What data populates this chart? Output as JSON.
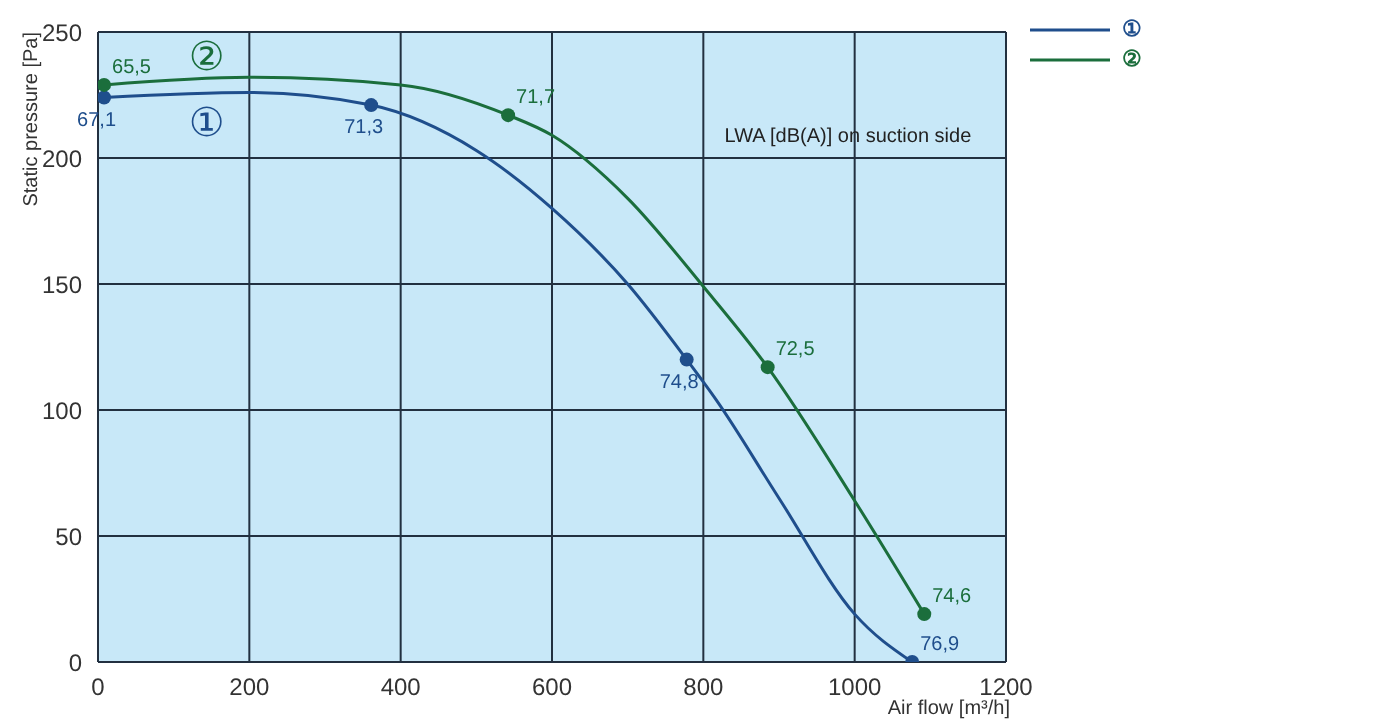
{
  "chart_data": {
    "type": "line",
    "xlabel": "Air flow [m³/h]",
    "ylabel": "Static pressure [Pa]",
    "xlim": [
      0,
      1200
    ],
    "xticks": [
      0,
      200,
      400,
      600,
      800,
      1000,
      1200
    ],
    "ylim": [
      0,
      250
    ],
    "yticks": [
      0,
      50,
      100,
      150,
      200,
      250
    ],
    "grid": true,
    "legend": "top right",
    "line_style": "solid",
    "series": [
      {
        "name": "①",
        "color": "#1f4e8c",
        "x": [
          8,
          200,
          361,
          500,
          600,
          700,
          778,
          817,
          900,
          1000,
          1076
        ],
        "values": [
          224,
          226,
          221,
          203,
          180,
          150,
          120,
          104,
          65,
          19,
          0
        ]
      },
      {
        "name": "②",
        "color": "#1b6e3c",
        "x": [
          8,
          200,
          400,
          542,
          600,
          700,
          800,
          885,
          1000,
          1092
        ],
        "values": [
          229,
          232,
          229,
          217,
          209,
          184,
          149,
          117,
          64,
          19
        ]
      },
      {
        "type": "scatter",
        "color": "#1f4e8c",
        "x": [
          8,
          361,
          778,
          1076
        ],
        "values": [
          224,
          221,
          120,
          0
        ]
      },
      {
        "type": "scatter",
        "color": "#1b6e3c",
        "x": [
          8,
          542,
          885,
          1092
        ],
        "values": [
          229,
          217,
          117,
          19
        ]
      }
    ],
    "annotations": [
      "LWA [dB(A)] on suction side",
      "②",
      "①",
      {
        "text": "67,1",
        "x": 8,
        "y": 224
      },
      {
        "text": "71,3",
        "x": 361,
        "y": 221
      },
      {
        "text": "74,8",
        "x": 778,
        "y": 120
      },
      {
        "text": "76,9",
        "x": 1076,
        "y": 0
      },
      {
        "text": "65,5",
        "x": 8,
        "y": 229
      },
      {
        "text": "71,7",
        "x": 542,
        "y": 217
      },
      {
        "text": "72,5",
        "x": 885,
        "y": 117
      },
      {
        "text": "74,6",
        "x": 1092,
        "y": 19
      }
    ]
  }
}
